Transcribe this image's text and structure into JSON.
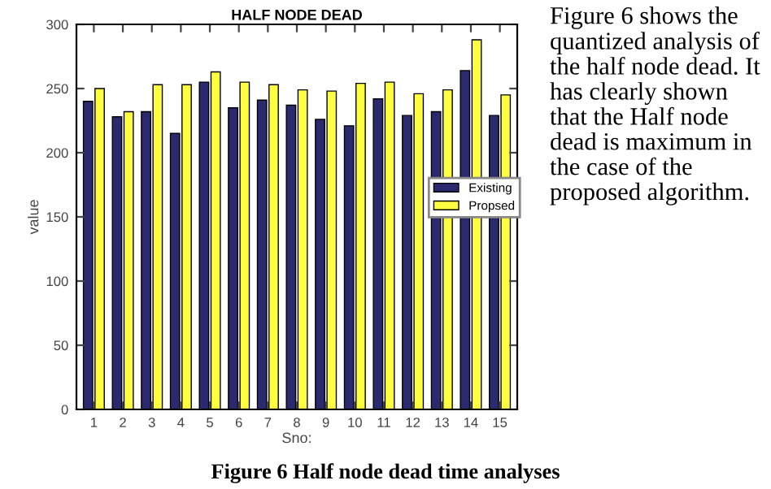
{
  "chart_data": {
    "type": "bar",
    "title": "HALF NODE DEAD",
    "xlabel": "Sno:",
    "ylabel": "value",
    "categories": [
      "1",
      "2",
      "3",
      "4",
      "5",
      "6",
      "7",
      "8",
      "9",
      "10",
      "11",
      "12",
      "13",
      "14",
      "15"
    ],
    "series": [
      {
        "name": "Existing",
        "color": "#2b2a6e",
        "values": [
          240,
          228,
          232,
          215,
          255,
          235,
          241,
          237,
          226,
          221,
          242,
          229,
          232,
          264,
          229
        ]
      },
      {
        "name": "Propsed",
        "color": "#ffff40",
        "values": [
          250,
          232,
          253,
          253,
          263,
          255,
          253,
          249,
          248,
          254,
          255,
          246,
          249,
          288,
          245
        ]
      }
    ],
    "ylim": [
      0,
      300
    ],
    "yticks": [
      0,
      50,
      100,
      150,
      200,
      250,
      300
    ],
    "grid": false,
    "legend": "right",
    "annotations": [
      "Figure 6 shows the quantized analysis of the half node dead. It has clearly shown that the Half node dead is maximum in the case of the proposed algorithm.",
      "Figure 6 Half node dead time analyses"
    ]
  }
}
